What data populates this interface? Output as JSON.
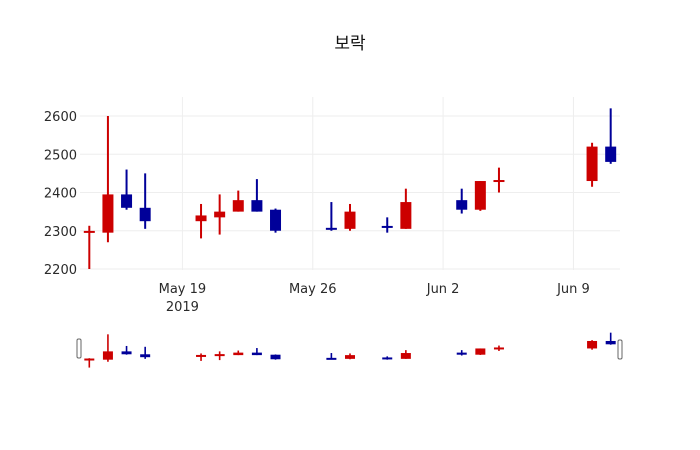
{
  "chart": {
    "title": "보락",
    "colors": {
      "increasing": "#cc0000",
      "decreasing": "#000099",
      "grid": "#eeeeee"
    },
    "rangeslider": true
  },
  "chart_data": {
    "type": "candlestick",
    "title": "보락",
    "xlabel": "",
    "ylabel": "",
    "ylim": [
      2195,
      2640
    ],
    "y_ticks": [
      2200,
      2300,
      2400,
      2500,
      2600
    ],
    "x_ticks": [
      {
        "date": "2019-05-19",
        "label": "May 19",
        "sublabel": "2019"
      },
      {
        "date": "2019-05-26",
        "label": "May 26",
        "sublabel": ""
      },
      {
        "date": "2019-06-02",
        "label": "Jun 2",
        "sublabel": ""
      },
      {
        "date": "2019-06-09",
        "label": "Jun 9",
        "sublabel": ""
      }
    ],
    "x_range": [
      "2019-05-13T12:00",
      "2019-06-11T12:00"
    ],
    "grid": true,
    "legend": "none",
    "series": [
      {
        "date": "2019-05-14",
        "open": 2295,
        "high": 2313,
        "low": 2200,
        "close": 2297
      },
      {
        "date": "2019-05-15",
        "open": 2295,
        "high": 2600,
        "low": 2270,
        "close": 2395
      },
      {
        "date": "2019-05-16",
        "open": 2395,
        "high": 2460,
        "low": 2355,
        "close": 2360
      },
      {
        "date": "2019-05-17",
        "open": 2360,
        "high": 2450,
        "low": 2305,
        "close": 2325
      },
      {
        "date": "2019-05-20",
        "open": 2325,
        "high": 2370,
        "low": 2280,
        "close": 2340
      },
      {
        "date": "2019-05-21",
        "open": 2335,
        "high": 2395,
        "low": 2290,
        "close": 2350
      },
      {
        "date": "2019-05-22",
        "open": 2350,
        "high": 2405,
        "low": 2350,
        "close": 2380
      },
      {
        "date": "2019-05-23",
        "open": 2380,
        "high": 2435,
        "low": 2350,
        "close": 2350
      },
      {
        "date": "2019-05-24",
        "open": 2355,
        "high": 2358,
        "low": 2295,
        "close": 2300
      },
      {
        "date": "2019-05-27",
        "open": 2305,
        "high": 2375,
        "low": 2300,
        "close": 2300
      },
      {
        "date": "2019-05-28",
        "open": 2305,
        "high": 2370,
        "low": 2300,
        "close": 2350
      },
      {
        "date": "2019-05-30",
        "open": 2310,
        "high": 2335,
        "low": 2295,
        "close": 2305
      },
      {
        "date": "2019-05-31",
        "open": 2305,
        "high": 2410,
        "low": 2305,
        "close": 2375
      },
      {
        "date": "2019-06-03",
        "open": 2380,
        "high": 2410,
        "low": 2345,
        "close": 2355
      },
      {
        "date": "2019-06-04",
        "open": 2355,
        "high": 2430,
        "low": 2352,
        "close": 2430
      },
      {
        "date": "2019-06-05",
        "open": 2425,
        "high": 2465,
        "low": 2400,
        "close": 2430
      },
      {
        "date": "2019-06-10",
        "open": 2430,
        "high": 2530,
        "low": 2415,
        "close": 2520
      },
      {
        "date": "2019-06-11",
        "open": 2520,
        "high": 2620,
        "low": 2475,
        "close": 2480
      }
    ]
  }
}
